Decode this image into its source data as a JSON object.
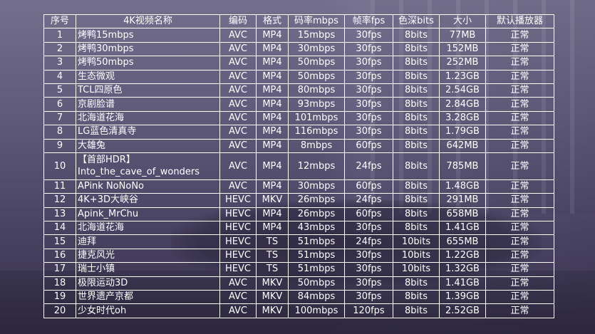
{
  "table": {
    "headers": [
      "序号",
      "4K视频名称",
      "编码",
      "格式",
      "码率mbps",
      "帧率fps",
      "色深bits",
      "大小",
      "默认播放器"
    ],
    "rows": [
      {
        "no": "1",
        "name": "烤鸭15mbps",
        "codec": "AVC",
        "format": "MP4",
        "bitrate": "15mbps",
        "fps": "30fps",
        "depth": "8bits",
        "size": "77MB",
        "player": "正常"
      },
      {
        "no": "2",
        "name": "烤鸭30mbps",
        "codec": "AVC",
        "format": "MP4",
        "bitrate": "30mbps",
        "fps": "30fps",
        "depth": "8bits",
        "size": "152MB",
        "player": "正常"
      },
      {
        "no": "3",
        "name": "烤鸭50mbps",
        "codec": "AVC",
        "format": "MP4",
        "bitrate": "50mbps",
        "fps": "30fps",
        "depth": "8bits",
        "size": "252MB",
        "player": "正常"
      },
      {
        "no": "4",
        "name": "生态微观",
        "codec": "AVC",
        "format": "MP4",
        "bitrate": "50mbps",
        "fps": "30fps",
        "depth": "8bits",
        "size": "1.23GB",
        "player": "正常"
      },
      {
        "no": "5",
        "name": "TCL四原色",
        "codec": "AVC",
        "format": "MP4",
        "bitrate": "80mbps",
        "fps": "30fps",
        "depth": "8bits",
        "size": "2.54GB",
        "player": "正常"
      },
      {
        "no": "6",
        "name": "京剧脸谱",
        "codec": "AVC",
        "format": "MP4",
        "bitrate": "93mbps",
        "fps": "30fps",
        "depth": "8bits",
        "size": "2.84GB",
        "player": "正常"
      },
      {
        "no": "7",
        "name": "北海道花海",
        "codec": "AVC",
        "format": "MP4",
        "bitrate": "101mbps",
        "fps": "30fps",
        "depth": "8bits",
        "size": "3.28GB",
        "player": "正常"
      },
      {
        "no": "8",
        "name": "LG蓝色清真寺",
        "codec": "AVC",
        "format": "MP4",
        "bitrate": "116mbps",
        "fps": "30fps",
        "depth": "8bits",
        "size": "1.79GB",
        "player": "正常"
      },
      {
        "no": "9",
        "name": "大雄兔",
        "codec": "AVC",
        "format": "MP4",
        "bitrate": "8mbps",
        "fps": "60fps",
        "depth": "8bits",
        "size": "642MB",
        "player": "正常"
      },
      {
        "no": "10",
        "name": "【首部HDR】Into_the_cave_of_wonders",
        "codec": "AVC",
        "format": "MP4",
        "bitrate": "12mbps",
        "fps": "24fps",
        "depth": "8bits",
        "size": "785MB",
        "player": "正常"
      },
      {
        "no": "11",
        "name": "APink NoNoNo",
        "codec": "AVC",
        "format": "MP4",
        "bitrate": "30mbps",
        "fps": "60fps",
        "depth": "8bits",
        "size": "1.48GB",
        "player": "正常"
      },
      {
        "no": "12",
        "name": "4K+3D大峡谷",
        "codec": "HEVC",
        "format": "MKV",
        "bitrate": "26mbps",
        "fps": "24fps",
        "depth": "8bits",
        "size": "291MB",
        "player": "正常"
      },
      {
        "no": "13",
        "name": "Apink_MrChu",
        "codec": "HEVC",
        "format": "MP4",
        "bitrate": "26mbps",
        "fps": "60fps",
        "depth": "8bits",
        "size": "658MB",
        "player": "正常"
      },
      {
        "no": "14",
        "name": "北海道花海",
        "codec": "HEVC",
        "format": "MP4",
        "bitrate": "43mbps",
        "fps": "30fps",
        "depth": "8bits",
        "size": "1.41GB",
        "player": "正常"
      },
      {
        "no": "15",
        "name": "迪拜",
        "codec": "HEVC",
        "format": "TS",
        "bitrate": "51mbps",
        "fps": "24fps",
        "depth": "10bits",
        "size": "655MB",
        "player": "正常"
      },
      {
        "no": "16",
        "name": "捷克风光",
        "codec": "HEVC",
        "format": "TS",
        "bitrate": "51mbps",
        "fps": "30fps",
        "depth": "10bits",
        "size": "1.22GB",
        "player": "正常"
      },
      {
        "no": "17",
        "name": "瑞士小镇",
        "codec": "HEVC",
        "format": "TS",
        "bitrate": "51mbps",
        "fps": "30fps",
        "depth": "10bits",
        "size": "1.32GB",
        "player": "正常"
      },
      {
        "no": "18",
        "name": "极限运动3D",
        "codec": "AVC",
        "format": "MKV",
        "bitrate": "50mbps",
        "fps": "30fps",
        "depth": "8bits",
        "size": "1.41GB",
        "player": "正常"
      },
      {
        "no": "19",
        "name": "世界遗产京都",
        "codec": "AVC",
        "format": "MKV",
        "bitrate": "84mbps",
        "fps": "30fps",
        "depth": "8bits",
        "size": "1.39GB",
        "player": "正常"
      },
      {
        "no": "20",
        "name": "少女时代oh",
        "codec": "AVC",
        "format": "MKV",
        "bitrate": "100mbps",
        "fps": "120fps",
        "depth": "8bits",
        "size": "2.52GB",
        "player": "正常"
      }
    ]
  }
}
